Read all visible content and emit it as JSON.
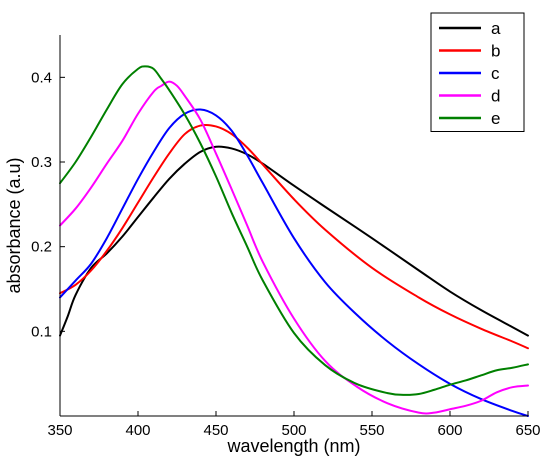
{
  "chart_data": {
    "type": "line",
    "title": "",
    "xlabel": "wavelength (nm)",
    "ylabel": "absorbance (a.u)",
    "xlim": [
      350,
      650
    ],
    "ylim": [
      0.0,
      0.45
    ],
    "xticks": [
      350,
      400,
      450,
      500,
      550,
      600,
      650
    ],
    "yticks": [
      0.1,
      0.2,
      0.3,
      0.4
    ],
    "ytick_labels": [
      "0.1",
      "0.2",
      "0.3",
      "0.4"
    ],
    "grid": false,
    "legend": "top-right",
    "series": [
      {
        "name": "a",
        "color": "#000000",
        "x": [
          350,
          355,
          360,
          370,
          380,
          390,
          400,
          410,
          420,
          430,
          440,
          450,
          460,
          470,
          480,
          500,
          520,
          550,
          580,
          600,
          620,
          640,
          650
        ],
        "y": [
          0.095,
          0.118,
          0.143,
          0.175,
          0.192,
          0.212,
          0.235,
          0.258,
          0.28,
          0.298,
          0.312,
          0.318,
          0.316,
          0.309,
          0.298,
          0.272,
          0.247,
          0.21,
          0.172,
          0.147,
          0.125,
          0.105,
          0.095
        ]
      },
      {
        "name": "b",
        "color": "#ff0000",
        "x": [
          350,
          360,
          370,
          380,
          390,
          400,
          410,
          420,
          430,
          440,
          450,
          460,
          470,
          480,
          500,
          520,
          550,
          580,
          600,
          620,
          640,
          650
        ],
        "y": [
          0.145,
          0.155,
          0.172,
          0.195,
          0.222,
          0.252,
          0.282,
          0.31,
          0.333,
          0.343,
          0.342,
          0.333,
          0.317,
          0.297,
          0.256,
          0.22,
          0.175,
          0.14,
          0.12,
          0.103,
          0.088,
          0.08
        ]
      },
      {
        "name": "c",
        "color": "#0000ff",
        "x": [
          350,
          360,
          370,
          380,
          390,
          400,
          410,
          420,
          430,
          440,
          450,
          460,
          470,
          480,
          500,
          520,
          540,
          560,
          580,
          600,
          620,
          640,
          650
        ],
        "y": [
          0.14,
          0.16,
          0.18,
          0.21,
          0.245,
          0.28,
          0.312,
          0.34,
          0.357,
          0.362,
          0.355,
          0.337,
          0.308,
          0.275,
          0.21,
          0.158,
          0.12,
          0.088,
          0.061,
          0.038,
          0.02,
          0.006,
          0.0
        ]
      },
      {
        "name": "d",
        "color": "#ff00ff",
        "x": [
          350,
          360,
          370,
          380,
          390,
          400,
          410,
          415,
          420,
          425,
          430,
          440,
          450,
          460,
          470,
          480,
          500,
          520,
          540,
          560,
          580,
          590,
          600,
          610,
          620,
          630,
          640,
          650
        ],
        "y": [
          0.225,
          0.245,
          0.27,
          0.298,
          0.325,
          0.357,
          0.383,
          0.39,
          0.395,
          0.39,
          0.378,
          0.35,
          0.31,
          0.268,
          0.225,
          0.182,
          0.115,
          0.065,
          0.035,
          0.015,
          0.004,
          0.004,
          0.008,
          0.012,
          0.018,
          0.028,
          0.034,
          0.036
        ]
      },
      {
        "name": "e",
        "color": "#008000",
        "x": [
          350,
          360,
          370,
          380,
          390,
          400,
          405,
          410,
          415,
          420,
          430,
          440,
          450,
          460,
          470,
          480,
          500,
          520,
          540,
          560,
          570,
          580,
          590,
          600,
          610,
          620,
          630,
          640,
          650
        ],
        "y": [
          0.275,
          0.3,
          0.33,
          0.362,
          0.392,
          0.41,
          0.413,
          0.41,
          0.398,
          0.385,
          0.356,
          0.322,
          0.283,
          0.24,
          0.2,
          0.16,
          0.098,
          0.06,
          0.038,
          0.027,
          0.025,
          0.026,
          0.031,
          0.037,
          0.042,
          0.048,
          0.054,
          0.057,
          0.061
        ]
      }
    ]
  }
}
